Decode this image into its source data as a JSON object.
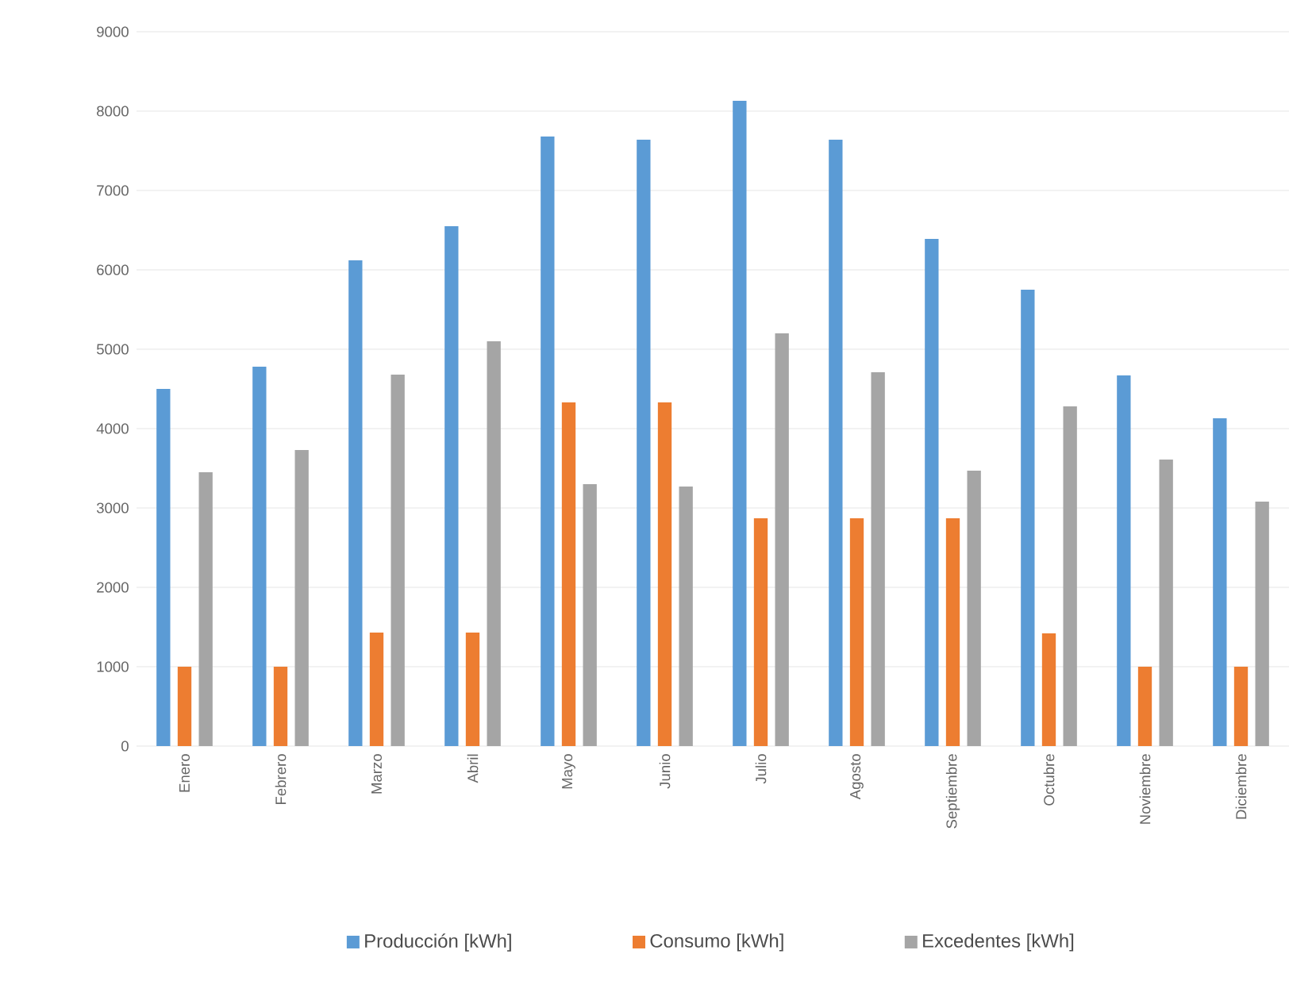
{
  "chart_data": {
    "type": "bar",
    "categories": [
      "Enero",
      "Febrero",
      "Marzo",
      "Abril",
      "Mayo",
      "Junio",
      "Julio",
      "Agosto",
      "Septiembre",
      "Octubre",
      "Noviembre",
      "Diciembre"
    ],
    "series": [
      {
        "name": "Producción [kWh]",
        "color": "#5b9bd5",
        "values": [
          4500,
          4780,
          6120,
          6550,
          7680,
          7640,
          8130,
          7640,
          6390,
          5750,
          4670,
          4130
        ]
      },
      {
        "name": "Consumo [kWh]",
        "color": "#ed7d31",
        "values": [
          1000,
          1000,
          1430,
          1430,
          4330,
          4330,
          2870,
          2870,
          2870,
          1420,
          1000,
          1000
        ]
      },
      {
        "name": "Excedentes [kWh]",
        "color": "#a5a5a5",
        "values": [
          3450,
          3730,
          4680,
          5100,
          3300,
          3270,
          5200,
          4710,
          3470,
          4280,
          3610,
          3080
        ]
      }
    ],
    "ylim": [
      0,
      9000
    ],
    "yticks": [
      0,
      1000,
      2000,
      3000,
      4000,
      5000,
      6000,
      7000,
      8000,
      9000
    ],
    "grid": "y",
    "legend": "bottom"
  }
}
